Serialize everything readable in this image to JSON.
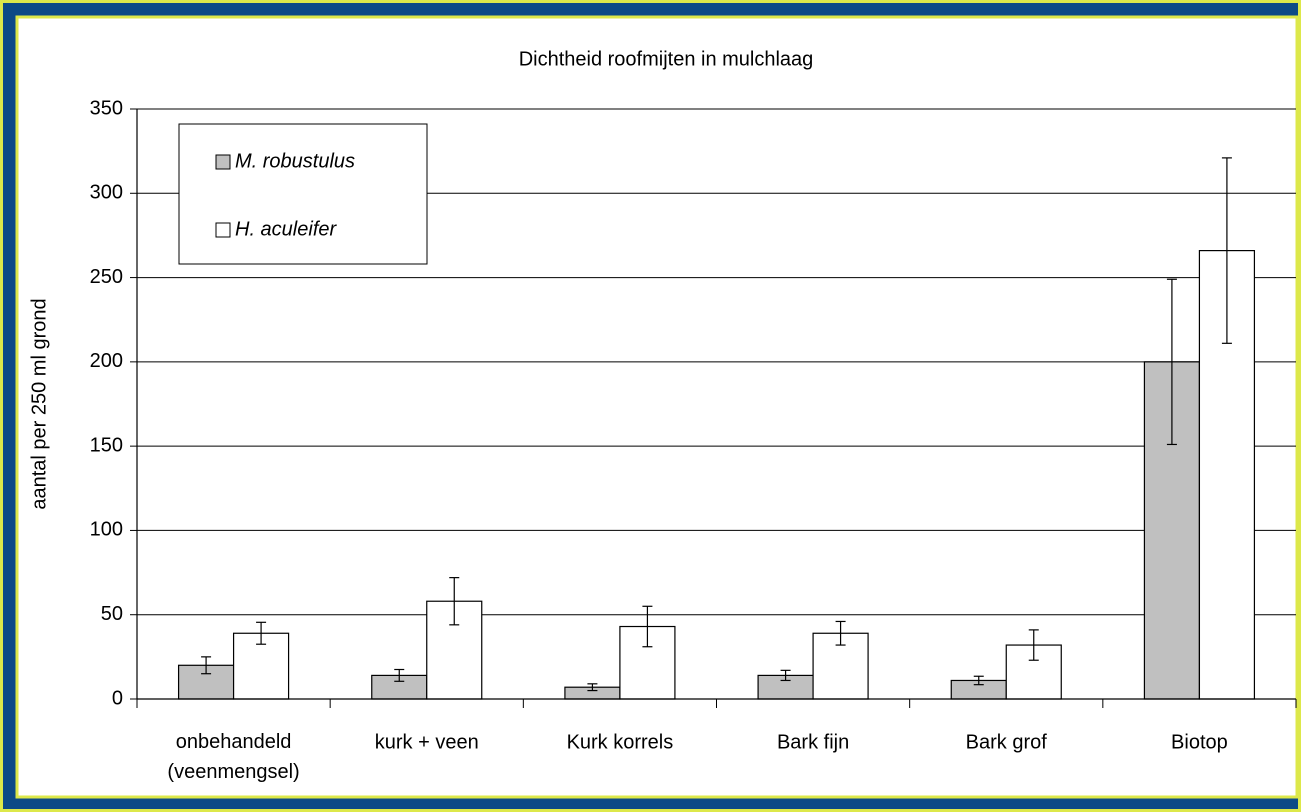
{
  "chart_data": {
    "type": "bar",
    "title": "Dichtheid roofmijten in mulchlaag",
    "y_label": "aantal per 250 ml grond",
    "categories": [
      "onbehandeld\n(veenmengsel)",
      "kurk + veen",
      "Kurk korrels",
      "Bark fijn",
      "Bark grof",
      "Biotop"
    ],
    "series": [
      {
        "name": "M. robustulus",
        "color": "#c0c0c0",
        "values": [
          20,
          14,
          7,
          14,
          11,
          200
        ],
        "errors": [
          5,
          3.5,
          2,
          3,
          2.5,
          49
        ]
      },
      {
        "name": "H. aculeifer",
        "color": "#ffffff",
        "values": [
          39,
          58,
          43,
          39,
          32,
          266
        ],
        "errors": [
          6.5,
          14,
          12,
          7,
          9,
          55
        ]
      }
    ],
    "ylim": [
      0,
      350
    ],
    "yticks": [
      0,
      50,
      100,
      150,
      200,
      250,
      300,
      350
    ],
    "grid": true,
    "legend": "top-left"
  }
}
